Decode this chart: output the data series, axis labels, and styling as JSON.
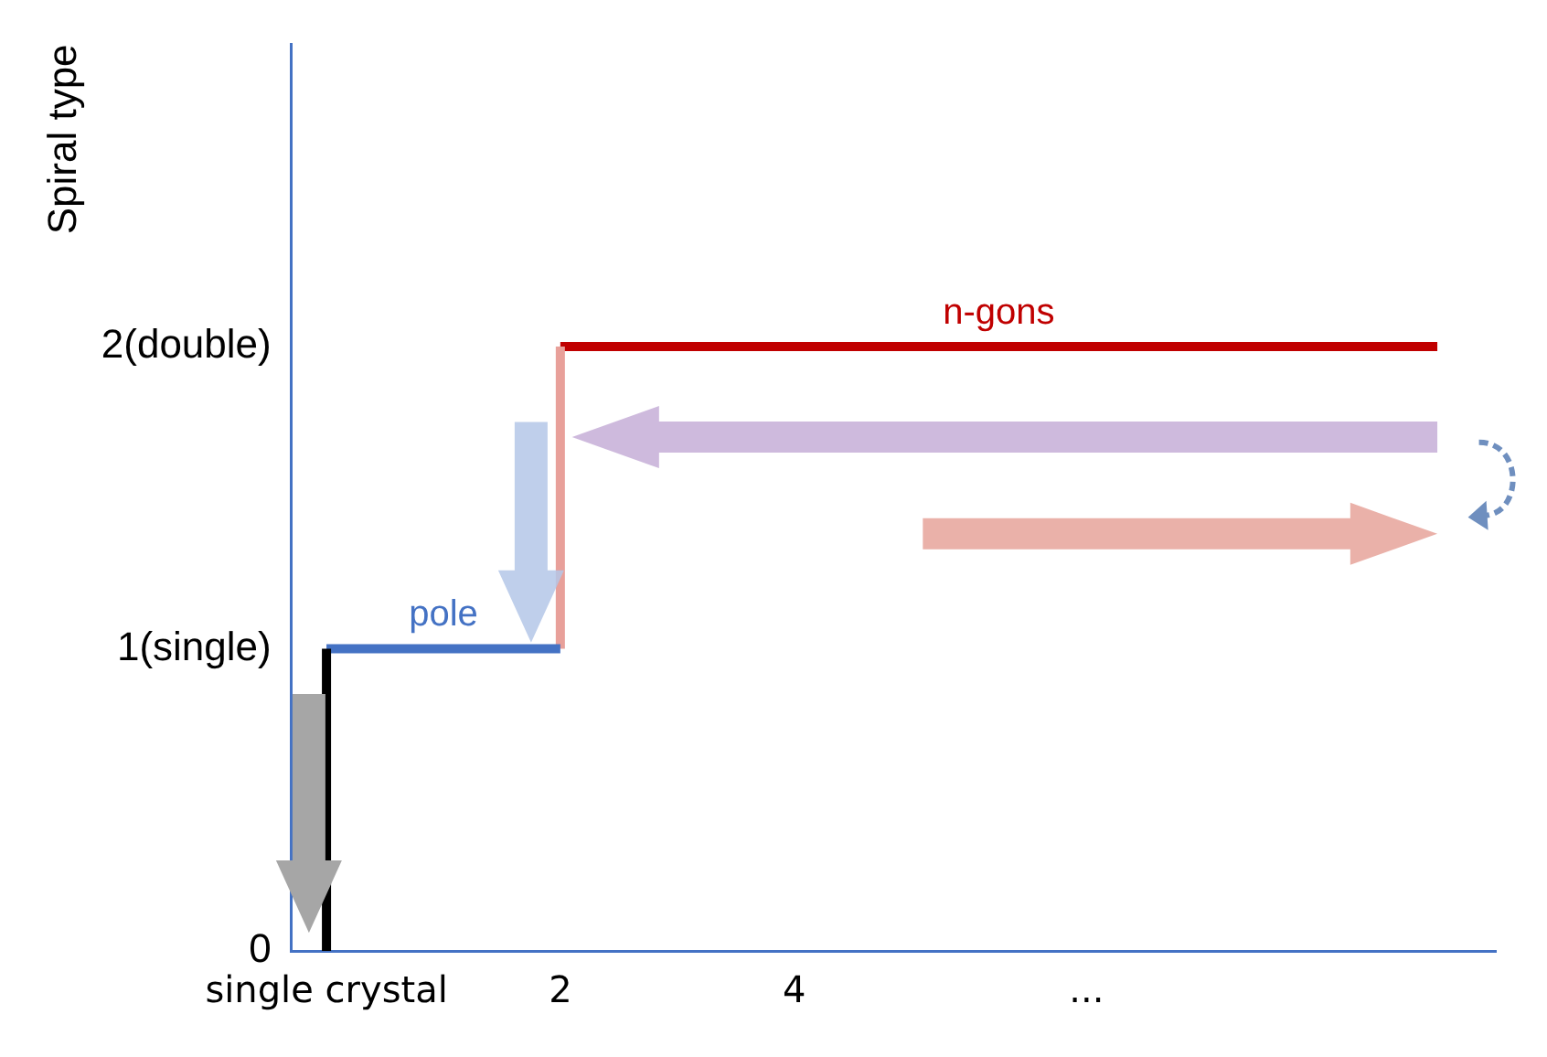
{
  "chart_data": {
    "type": "line",
    "ylabel": "Spiral type",
    "xlim": [
      -0.3,
      10
    ],
    "xticks": [
      {
        "value": 0,
        "label": "single crystal"
      },
      2,
      4,
      {
        "value": 6.5,
        "label": "..."
      }
    ],
    "ylim": [
      0,
      3
    ],
    "yticks": [
      0,
      {
        "value": 1,
        "label": "1(single)"
      },
      {
        "value": 2,
        "label": "2(double)"
      }
    ],
    "grid": false,
    "legend": false,
    "marker": "none",
    "line_style": "solid",
    "series": [
      {
        "color": "#000000",
        "x": [
          0,
          0
        ],
        "values": [
          0,
          1
        ]
      },
      {
        "name": "pole",
        "color": "#4472c4",
        "x": [
          0,
          2
        ],
        "values": [
          1,
          1
        ]
      },
      {
        "color": "#e8a09a",
        "x": [
          2,
          2
        ],
        "values": [
          1,
          2
        ]
      },
      {
        "name": "n-gons",
        "color": "#c00000",
        "x": [
          2,
          9.5
        ],
        "values": [
          2,
          2
        ]
      }
    ]
  }
}
